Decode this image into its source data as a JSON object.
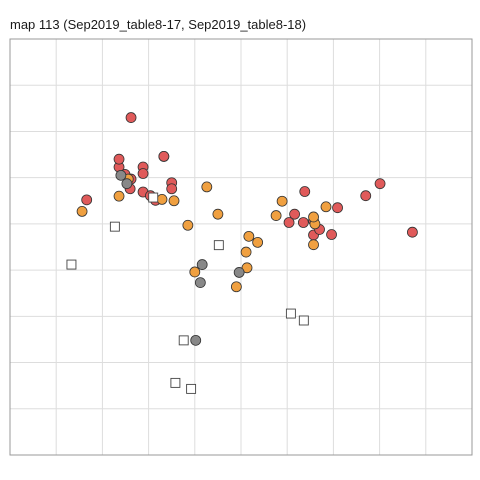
{
  "chart_data": {
    "type": "scatter",
    "title": "map 113 (Sep2019_table8-17, Sep2019_table8-18)",
    "xlabel": "",
    "ylabel": "",
    "xlim": [
      0,
      10
    ],
    "ylim": [
      0,
      9
    ],
    "grid": true,
    "legend": "none",
    "series": [
      {
        "color": "#e05a5a",
        "marker": "circle",
        "points": [
          {
            "x": 1.66,
            "y": 5.52
          },
          {
            "x": 2.36,
            "y": 6.23
          },
          {
            "x": 2.36,
            "y": 6.4
          },
          {
            "x": 2.49,
            "y": 6.07
          },
          {
            "x": 2.62,
            "y": 5.97
          },
          {
            "x": 2.62,
            "y": 7.3
          },
          {
            "x": 2.88,
            "y": 6.23
          },
          {
            "x": 2.88,
            "y": 6.09
          },
          {
            "x": 2.88,
            "y": 5.69
          },
          {
            "x": 3.15,
            "y": 5.51
          },
          {
            "x": 3.33,
            "y": 6.46
          },
          {
            "x": 3.33,
            "y": 6.46
          },
          {
            "x": 3.5,
            "y": 5.89
          },
          {
            "x": 3.5,
            "y": 5.76
          },
          {
            "x": 6.38,
            "y": 5.7
          },
          {
            "x": 6.16,
            "y": 5.21
          },
          {
            "x": 6.35,
            "y": 5.03
          },
          {
            "x": 6.57,
            "y": 4.76
          },
          {
            "x": 6.57,
            "y": 5.07
          },
          {
            "x": 6.7,
            "y": 4.88
          },
          {
            "x": 6.96,
            "y": 4.77
          },
          {
            "x": 7.09,
            "y": 5.35
          },
          {
            "x": 7.7,
            "y": 5.61
          },
          {
            "x": 8.01,
            "y": 5.87
          },
          {
            "x": 8.71,
            "y": 4.82
          },
          {
            "x": 3.04,
            "y": 5.61
          },
          {
            "x": 2.6,
            "y": 5.76
          },
          {
            "x": 6.04,
            "y": 5.03
          }
        ]
      },
      {
        "color": "#f0a040",
        "marker": "circle",
        "points": [
          {
            "x": 1.56,
            "y": 5.27
          },
          {
            "x": 2.36,
            "y": 5.6
          },
          {
            "x": 2.56,
            "y": 5.97
          },
          {
            "x": 3.29,
            "y": 5.53
          },
          {
            "x": 3.55,
            "y": 5.5
          },
          {
            "x": 4.26,
            "y": 5.8
          },
          {
            "x": 3.85,
            "y": 4.97
          },
          {
            "x": 4.5,
            "y": 5.21
          },
          {
            "x": 5.17,
            "y": 4.73
          },
          {
            "x": 5.36,
            "y": 4.6
          },
          {
            "x": 5.11,
            "y": 4.39
          },
          {
            "x": 5.13,
            "y": 4.05
          },
          {
            "x": 4.0,
            "y": 3.96
          },
          {
            "x": 4.9,
            "y": 3.64
          },
          {
            "x": 5.76,
            "y": 5.18
          },
          {
            "x": 5.89,
            "y": 5.49
          },
          {
            "x": 6.6,
            "y": 5.0
          },
          {
            "x": 6.57,
            "y": 4.55
          },
          {
            "x": 6.84,
            "y": 5.37
          },
          {
            "x": 6.57,
            "y": 5.15
          }
        ]
      },
      {
        "color": "#888888",
        "marker": "circle",
        "points": [
          {
            "x": 2.4,
            "y": 6.05
          },
          {
            "x": 2.53,
            "y": 5.87
          },
          {
            "x": 4.16,
            "y": 4.12
          },
          {
            "x": 4.12,
            "y": 3.73
          },
          {
            "x": 4.96,
            "y": 3.95
          },
          {
            "x": 4.02,
            "y": 2.48
          }
        ]
      },
      {
        "color": "#ffffff",
        "marker": "square",
        "points": [
          {
            "x": 3.1,
            "y": 5.57
          },
          {
            "x": 2.27,
            "y": 4.94
          },
          {
            "x": 1.33,
            "y": 4.12
          },
          {
            "x": 4.52,
            "y": 4.54
          },
          {
            "x": 6.08,
            "y": 3.06
          },
          {
            "x": 6.36,
            "y": 2.91
          },
          {
            "x": 3.76,
            "y": 2.48
          },
          {
            "x": 3.58,
            "y": 1.56
          },
          {
            "x": 3.92,
            "y": 1.43
          }
        ]
      }
    ]
  }
}
